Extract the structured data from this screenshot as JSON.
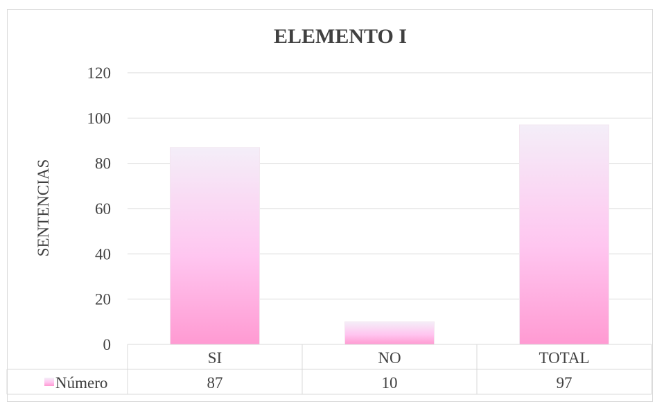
{
  "chart_data": {
    "type": "bar",
    "title": "ELEMENTO I",
    "ylabel": "SENTENCIAS",
    "xlabel": "",
    "categories": [
      "SI",
      "NO",
      "TOTAL"
    ],
    "series": [
      {
        "name": "Número",
        "values": [
          87,
          10,
          97
        ]
      }
    ],
    "ylim": [
      0,
      120
    ],
    "yticks": [
      0,
      20,
      40,
      60,
      80,
      100,
      120
    ],
    "grid": true,
    "data_table": true,
    "colors": {
      "bar_top": "#f4eef8",
      "bar_mid": "#ffc6f0",
      "bar_bottom": "#ff9ad2",
      "grid": "#d9d9d9",
      "text": "#404040"
    }
  }
}
